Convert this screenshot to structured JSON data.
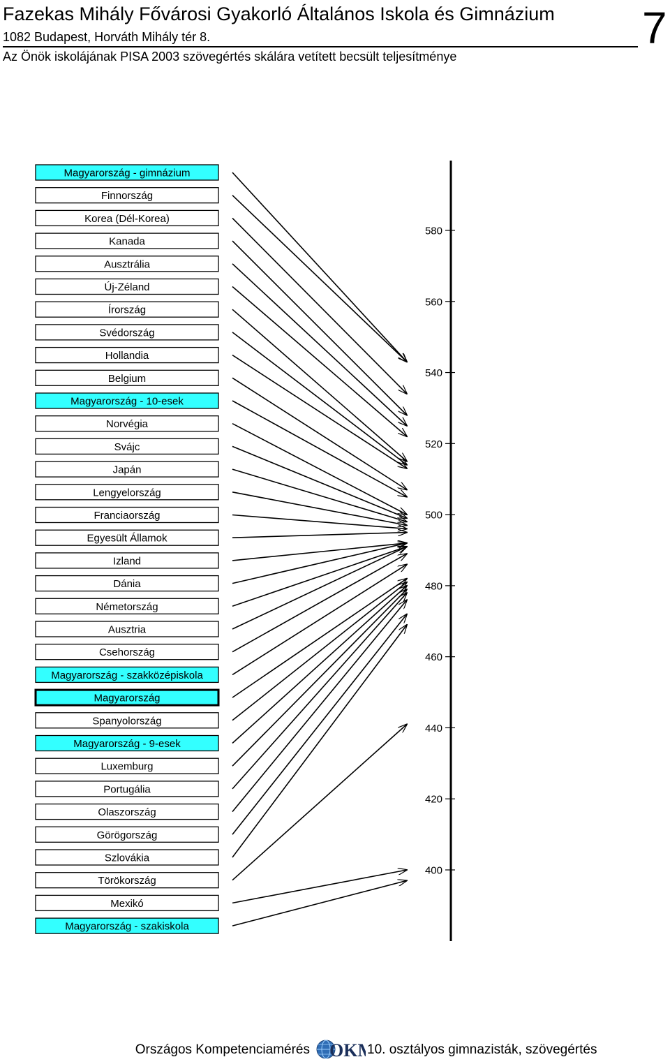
{
  "header": {
    "school_name": "Fazekas Mihály Fővárosi Gyakorló Általános Iskola és Gimnázium",
    "address": "1082 Budapest, Horváth Mihály tér 8.",
    "subtitle": "Az Önök iskolájának PISA 2003 szövegértés skálára vetített becsült teljesítménye",
    "page_number": "7"
  },
  "footer": {
    "left_text": "Országos Kompetenciamérés",
    "logo_text": "OKM",
    "right_text": "10. osztályos gimnazisták, szövegértés"
  },
  "colors": {
    "highlight": "#33ffff",
    "normal_box": "#ffffff",
    "axis": "#000000",
    "arrow": "#000000"
  },
  "chart_data": {
    "type": "arrow-ranking",
    "axis": {
      "ticks": [
        580,
        560,
        540,
        520,
        500,
        480,
        460,
        440,
        420,
        400
      ],
      "range": [
        380,
        600
      ]
    },
    "entries": [
      {
        "label": "Magyarország - gimnázium",
        "value": 543,
        "highlight": true
      },
      {
        "label": "Finnország",
        "value": 543,
        "highlight": false
      },
      {
        "label": "Korea (Dél-Korea)",
        "value": 534,
        "highlight": false
      },
      {
        "label": "Kanada",
        "value": 528,
        "highlight": false
      },
      {
        "label": "Ausztrália",
        "value": 525,
        "highlight": false
      },
      {
        "label": "Új-Zéland",
        "value": 522,
        "highlight": false
      },
      {
        "label": "Írország",
        "value": 515,
        "highlight": false
      },
      {
        "label": "Svédország",
        "value": 514,
        "highlight": false
      },
      {
        "label": "Hollandia",
        "value": 513,
        "highlight": false
      },
      {
        "label": "Belgium",
        "value": 507,
        "highlight": false
      },
      {
        "label": "Magyarország - 10-esek",
        "value": 505,
        "highlight": true
      },
      {
        "label": "Norvégia",
        "value": 500,
        "highlight": false
      },
      {
        "label": "Svájc",
        "value": 499,
        "highlight": false
      },
      {
        "label": "Japán",
        "value": 498,
        "highlight": false
      },
      {
        "label": "Lengyelország",
        "value": 497,
        "highlight": false
      },
      {
        "label": "Franciaország",
        "value": 496,
        "highlight": false
      },
      {
        "label": "Egyesült Államok",
        "value": 495,
        "highlight": false
      },
      {
        "label": "Izland",
        "value": 492,
        "highlight": false
      },
      {
        "label": "Dánia",
        "value": 492,
        "highlight": false
      },
      {
        "label": "Németország",
        "value": 491,
        "highlight": false
      },
      {
        "label": "Ausztria",
        "value": 491,
        "highlight": false
      },
      {
        "label": "Csehország",
        "value": 489,
        "highlight": false
      },
      {
        "label": "Magyarország - szakközépiskola",
        "value": 486,
        "highlight": true
      },
      {
        "label": "Magyarország",
        "value": 482,
        "highlight": true,
        "bold_border": true
      },
      {
        "label": "Spanyolország",
        "value": 481,
        "highlight": false
      },
      {
        "label": "Magyarország - 9-esek",
        "value": 480,
        "highlight": true
      },
      {
        "label": "Luxemburg",
        "value": 479,
        "highlight": false
      },
      {
        "label": "Portugália",
        "value": 478,
        "highlight": false
      },
      {
        "label": "Olaszország",
        "value": 476,
        "highlight": false
      },
      {
        "label": "Görögország",
        "value": 472,
        "highlight": false
      },
      {
        "label": "Szlovákia",
        "value": 469,
        "highlight": false
      },
      {
        "label": "Törökország",
        "value": 441,
        "highlight": false
      },
      {
        "label": "Mexikó",
        "value": 400,
        "highlight": false
      },
      {
        "label": "Magyarország - szakiskola",
        "value": 397,
        "highlight": true
      }
    ]
  }
}
